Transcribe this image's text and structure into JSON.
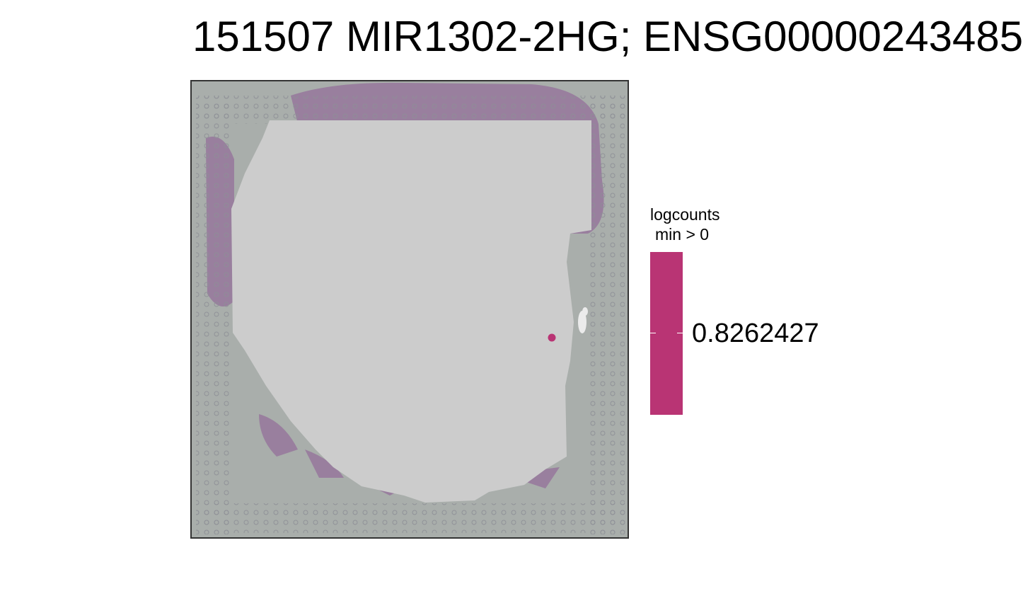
{
  "chart_data": {
    "type": "scatter",
    "title": "151507 MIR1302-2HG; ENSG00000243485",
    "legend": {
      "title_line1": "logcounts",
      "title_line2": " min > 0",
      "value_label": "0.8262427",
      "color": "#b93474",
      "placement": "right"
    },
    "points": [
      {
        "value": 0.8262427,
        "color": "#b93474"
      }
    ],
    "background_spot_color": "#cccccc",
    "tissue_stain_color": "#8c4a8e",
    "grid": false
  }
}
